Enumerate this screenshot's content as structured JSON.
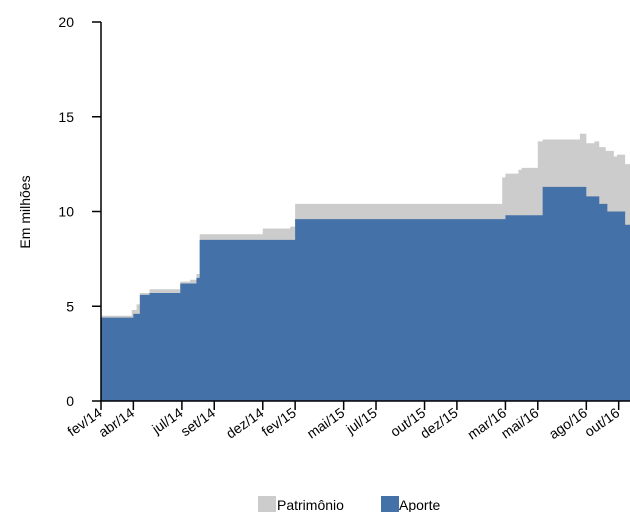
{
  "chart_data": {
    "type": "area",
    "title": "",
    "xlabel": "",
    "ylabel": "Em milhões",
    "ylim": [
      0,
      20
    ],
    "yticks": [
      0,
      5,
      10,
      15,
      20
    ],
    "x_tick_labels": [
      "fev/14",
      "abr/14",
      "jul/14",
      "set/14",
      "dez/14",
      "fev/15",
      "mai/15",
      "jul/15",
      "out/15",
      "dez/15",
      "mar/16",
      "mai/16",
      "ago/16",
      "out/16"
    ],
    "x_tick_months": [
      0,
      2,
      5,
      7,
      10,
      12,
      15,
      17,
      20,
      22,
      25,
      27,
      30,
      32
    ],
    "x_range_months": [
      0,
      32.7
    ],
    "grid": false,
    "legend_position": "bottom",
    "colors": {
      "Patrimônio": "#cccccc",
      "Aporte": "#4472a8"
    },
    "series": [
      {
        "name": "Patrimônio",
        "stepped": true,
        "x_months": [
          0,
          1.6,
          1.9,
          2.2,
          2.4,
          3.0,
          4.0,
          4.9,
          5.5,
          5.9,
          6.1,
          10.0,
          11.7,
          12.0,
          24.8,
          25.0,
          25.8,
          26.0,
          27.0,
          27.3,
          29.6,
          30.0,
          30.5,
          30.8,
          31.2,
          31.7,
          31.9,
          32.4,
          32.7
        ],
        "values": [
          4.5,
          4.5,
          4.8,
          5.1,
          5.7,
          5.9,
          5.9,
          6.3,
          6.4,
          6.7,
          8.8,
          9.1,
          9.2,
          10.4,
          11.8,
          12.0,
          12.2,
          12.3,
          13.7,
          13.8,
          14.1,
          13.6,
          13.7,
          13.4,
          13.2,
          12.9,
          13.0,
          12.5,
          12.4
        ]
      },
      {
        "name": "Aporte",
        "stepped": true,
        "x_months": [
          0,
          1.6,
          2.0,
          2.4,
          3.0,
          4.9,
          5.5,
          5.9,
          6.1,
          12.0,
          25.0,
          27.3,
          30.0,
          30.8,
          31.3,
          31.8,
          32.4,
          32.7
        ],
        "values": [
          4.4,
          4.4,
          4.6,
          5.6,
          5.7,
          6.2,
          6.2,
          6.5,
          8.5,
          9.6,
          9.8,
          11.3,
          10.8,
          10.4,
          10.0,
          10.0,
          9.3,
          9.2
        ]
      }
    ]
  }
}
